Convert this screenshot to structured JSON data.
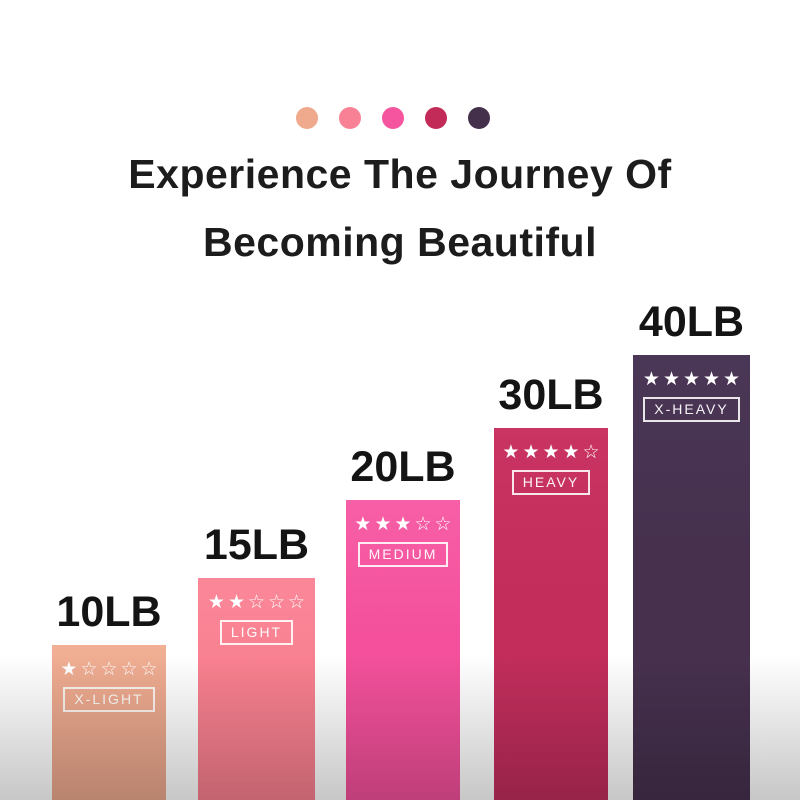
{
  "title": {
    "line1": "Experience The Journey Of",
    "line2": "Becoming Beautiful",
    "color": "#1c1c1c"
  },
  "palette_dots": [
    {
      "name": "x-light",
      "color": "#efa98d"
    },
    {
      "name": "light",
      "color": "#f88196"
    },
    {
      "name": "medium",
      "color": "#f4559e"
    },
    {
      "name": "heavy",
      "color": "#c22a57"
    },
    {
      "name": "x-heavy",
      "color": "#45304c"
    }
  ],
  "background": {
    "top": "#ffffff",
    "bottom_fade": "#bfbfbf"
  },
  "chart_data": {
    "type": "bar",
    "categories": [
      "10LB",
      "15LB",
      "20LB",
      "30LB",
      "40LB"
    ],
    "values": [
      10,
      15,
      20,
      30,
      40
    ],
    "unit": "LB",
    "max_stars": 5,
    "legend_position": "none",
    "grid": false,
    "bars": [
      {
        "weight": "10LB",
        "level": "X-LIGHT",
        "stars": 1,
        "stars_text": "★☆☆☆☆",
        "color_top": "#f1af94",
        "color": "#eda98e"
      },
      {
        "weight": "15LB",
        "level": "LIGHT",
        "stars": 2,
        "stars_text": "★★☆☆☆",
        "color_top": "#fa8799",
        "color": "#f9808f"
      },
      {
        "weight": "20LB",
        "level": "MEDIUM",
        "stars": 3,
        "stars_text": "★★★☆☆",
        "color_top": "#f75fa6",
        "color": "#f4509b"
      },
      {
        "weight": "30LB",
        "level": "HEAVY",
        "stars": 4,
        "stars_text": "★★★★☆",
        "color_top": "#c93463",
        "color": "#c22d5c"
      },
      {
        "weight": "40LB",
        "level": "X-HEAVY",
        "stars": 5,
        "stars_text": "★★★★★",
        "color_top": "#4a3656",
        "color": "#46304e"
      }
    ]
  }
}
